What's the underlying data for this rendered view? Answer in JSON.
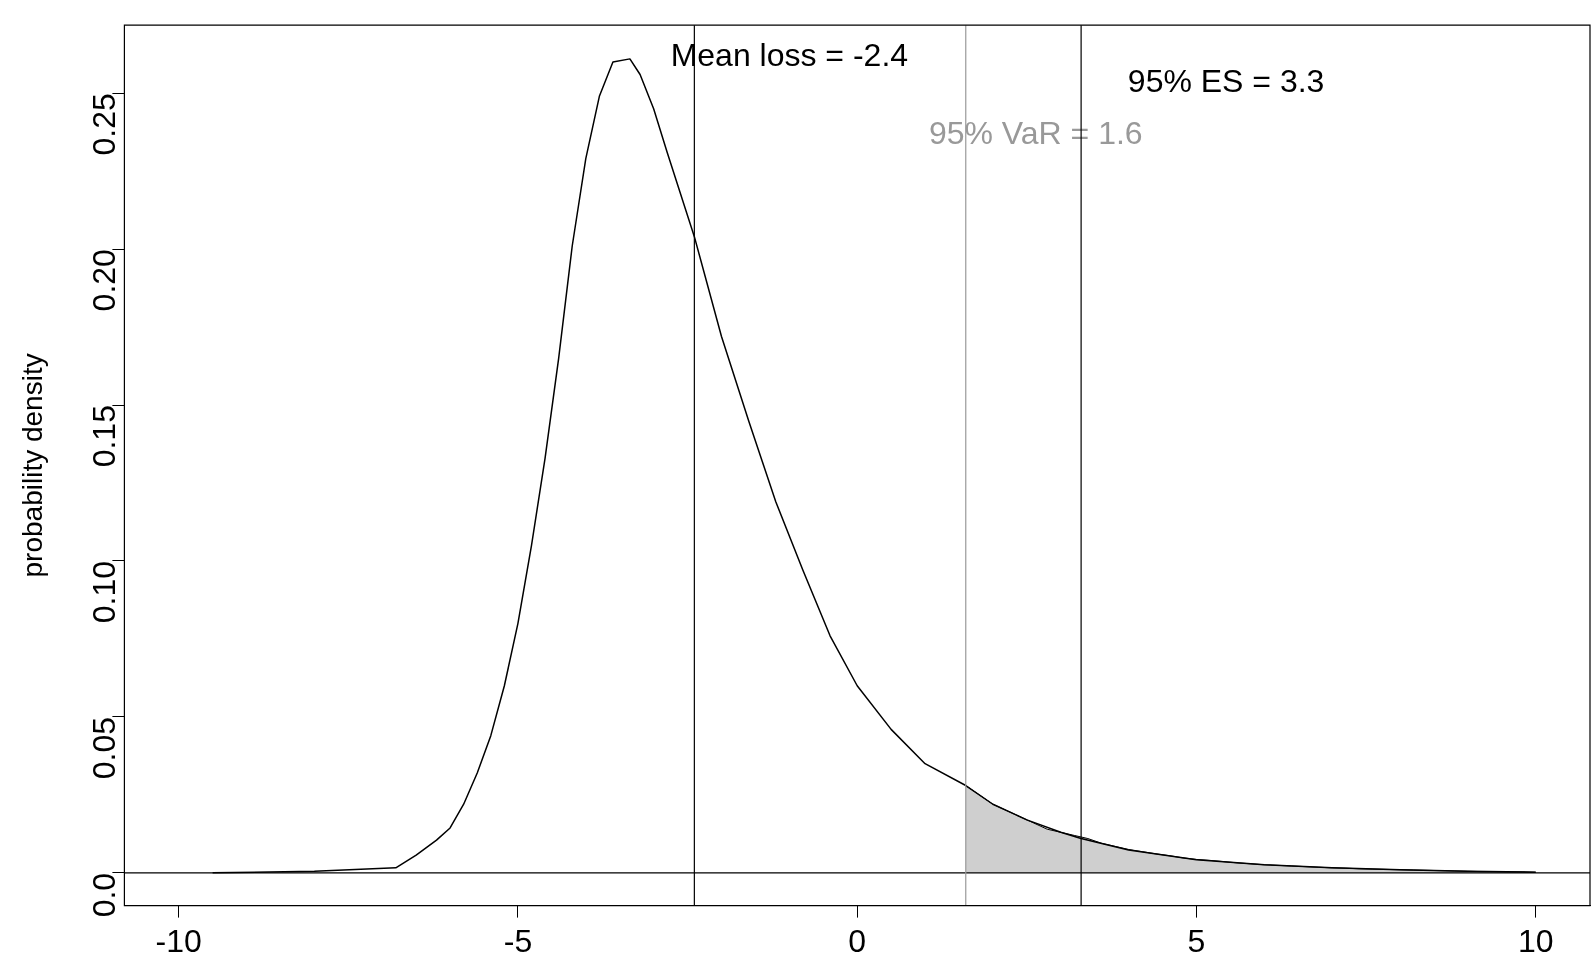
{
  "chart_data": {
    "type": "line",
    "ylabel": "probability density",
    "xlim": [
      -10.8,
      10.8
    ],
    "ylim": [
      -0.0105,
      0.2718
    ],
    "xticks": [
      -10,
      -5,
      0,
      5,
      10
    ],
    "yticks": [
      {
        "value": 0,
        "label": "0.0"
      },
      0.05,
      {
        "value": 0.1,
        "label": "0.10"
      },
      0.15,
      {
        "value": 0.2,
        "label": "0.20"
      },
      0.25
    ],
    "grid": false,
    "legend": false,
    "marker": "none",
    "line_style": "solid",
    "series": [
      {
        "type": "line",
        "color": "#000000",
        "x": [
          -9.5,
          -8,
          -6.8,
          -6.5,
          -6.2,
          -6,
          -5.8,
          -5.6,
          -5.4,
          -5.2,
          -5,
          -4.8,
          -4.6,
          -4.4,
          -4.2,
          -4,
          -3.8,
          -3.6,
          -3.35,
          -3.2,
          -3,
          -2.8,
          -2.4,
          -2,
          -1.6,
          -1.2,
          -0.8,
          -0.4,
          0,
          0.5,
          1,
          1.6,
          2,
          2.5,
          3,
          3.3,
          4,
          5,
          6,
          7,
          8,
          9,
          10
        ],
        "values": [
          0,
          0.0005,
          0.0016,
          0.0057,
          0.0105,
          0.0144,
          0.022,
          0.032,
          0.044,
          0.06,
          0.08,
          0.105,
          0.133,
          0.165,
          0.201,
          0.229,
          0.249,
          0.26,
          0.261,
          0.256,
          0.245,
          0.231,
          0.204,
          0.172,
          0.145,
          0.119,
          0.097,
          0.076,
          0.06,
          0.046,
          0.035,
          0.028,
          0.022,
          0.017,
          0.013,
          0.011,
          0.0073,
          0.0042,
          0.0026,
          0.0016,
          0.001,
          0.0005,
          0.0002
        ]
      },
      {
        "type": "area",
        "color": "#000000",
        "x": [
          1.6,
          1.8,
          2,
          2.2,
          2.4,
          2.6,
          2.8,
          3,
          3.2,
          3.4,
          3.6,
          3.8,
          4,
          4.2,
          4.4,
          4.6,
          4.8,
          5,
          5.2,
          5.4,
          5.6,
          5.8,
          6,
          6.2,
          6.4,
          6.6,
          6.8,
          7,
          7.2,
          7.4,
          7.6,
          7.8,
          8,
          8.2,
          8.4,
          8.6,
          8.8,
          9,
          9.2,
          9.4,
          9.6,
          9.8,
          10
        ],
        "values": [
          0.028,
          0.025,
          0.022,
          0.02,
          0.018,
          0.016,
          0.014,
          0.013,
          0.012,
          0.011,
          0.0095,
          0.0085,
          0.0075,
          0.0068,
          0.0061,
          0.0055,
          0.0048,
          0.0043,
          0.004,
          0.0036,
          0.0032,
          0.0029,
          0.0026,
          0.0024,
          0.0022,
          0.002,
          0.0018,
          0.0016,
          0.0015,
          0.0013,
          0.0012,
          0.0011,
          0.001,
          0.0009,
          0.0008,
          0.0007,
          0.0006,
          0.0005,
          0.0004,
          0.0004,
          0.0003,
          0.0003,
          0.0002
        ]
      }
    ],
    "ref_lines": [
      {
        "axis": "y",
        "value": 0,
        "color": "#000000"
      },
      {
        "axis": "x",
        "value": -2.4,
        "label": "Mean loss = -2.4",
        "color": "#000000"
      },
      {
        "axis": "x",
        "value": 1.6,
        "label": "95% VaR = 1.6",
        "color": "#999999"
      },
      {
        "axis": "x",
        "value": 3.3,
        "label": "95% ES = 3.3",
        "color": "#000000"
      }
    ]
  }
}
